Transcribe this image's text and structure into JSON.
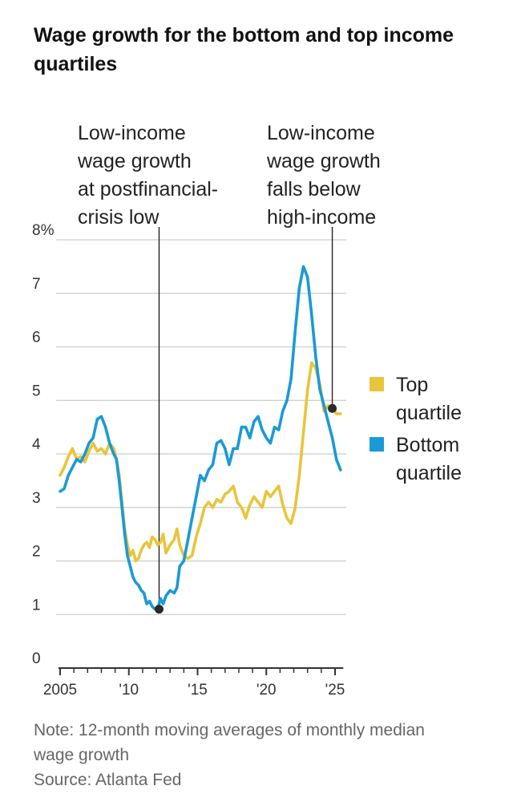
{
  "title": "Wage growth for the bottom and top income quartiles",
  "chart_data": {
    "type": "line",
    "title": "Wage growth for the bottom and top income quartiles",
    "xlabel": "",
    "ylabel": "",
    "xlim": [
      2005,
      2025.5
    ],
    "ylim": [
      0,
      8
    ],
    "y_ticks": [
      0,
      1,
      2,
      3,
      4,
      5,
      6,
      7,
      8
    ],
    "y_tick_labels": [
      "0",
      "1",
      "2",
      "3",
      "4",
      "5",
      "6",
      "7",
      "8%"
    ],
    "x_ticks": [
      2005,
      2010,
      2015,
      2020,
      2025
    ],
    "x_tick_labels": [
      "2005",
      "'10",
      "'15",
      "'20",
      "'25"
    ],
    "grid": true,
    "series": [
      {
        "name": "Top quartile",
        "color": "#e8c53a",
        "x": [
          2005.0,
          2005.3,
          2005.6,
          2005.9,
          2006.2,
          2006.5,
          2006.8,
          2007.1,
          2007.4,
          2007.7,
          2008.0,
          2008.3,
          2008.6,
          2008.9,
          2009.1,
          2009.3,
          2009.5,
          2009.7,
          2009.9,
          2010.1,
          2010.3,
          2010.5,
          2010.7,
          2010.9,
          2011.1,
          2011.3,
          2011.5,
          2011.7,
          2011.9,
          2012.1,
          2012.3,
          2012.5,
          2012.7,
          2013.0,
          2013.3,
          2013.5,
          2013.7,
          2014.0,
          2014.3,
          2014.6,
          2014.9,
          2015.2,
          2015.5,
          2015.8,
          2016.1,
          2016.4,
          2016.7,
          2017.0,
          2017.3,
          2017.6,
          2017.9,
          2018.2,
          2018.5,
          2018.8,
          2019.1,
          2019.4,
          2019.7,
          2020.0,
          2020.3,
          2020.6,
          2020.9,
          2021.2,
          2021.5,
          2021.8,
          2022.1,
          2022.4,
          2022.7,
          2023.0,
          2023.3,
          2023.6,
          2023.9,
          2024.2,
          2024.5,
          2024.8,
          2025.1,
          2025.4
        ],
        "values": [
          3.6,
          3.75,
          3.95,
          4.1,
          3.9,
          3.95,
          3.85,
          4.05,
          4.2,
          4.05,
          4.1,
          4.0,
          4.2,
          4.1,
          3.9,
          3.6,
          3.1,
          2.6,
          2.3,
          2.1,
          2.2,
          2.0,
          2.05,
          2.2,
          2.3,
          2.35,
          2.25,
          2.45,
          2.4,
          2.3,
          2.35,
          2.5,
          2.15,
          2.3,
          2.4,
          2.6,
          2.3,
          2.1,
          2.05,
          2.1,
          2.45,
          2.7,
          3.0,
          3.1,
          3.0,
          3.15,
          3.1,
          3.25,
          3.3,
          3.4,
          3.1,
          3.0,
          2.8,
          3.05,
          3.2,
          3.1,
          3.0,
          3.3,
          3.2,
          3.3,
          3.4,
          3.05,
          2.8,
          2.7,
          3.0,
          3.6,
          4.4,
          5.2,
          5.7,
          5.6,
          5.3,
          4.8,
          4.9,
          4.85,
          4.75,
          4.75
        ]
      },
      {
        "name": "Bottom quartile",
        "color": "#1a9ad6",
        "x": [
          2005.0,
          2005.3,
          2005.6,
          2005.9,
          2006.2,
          2006.5,
          2006.8,
          2007.1,
          2007.4,
          2007.7,
          2008.0,
          2008.3,
          2008.6,
          2008.9,
          2009.1,
          2009.3,
          2009.5,
          2009.7,
          2009.9,
          2010.1,
          2010.3,
          2010.5,
          2010.7,
          2010.9,
          2011.1,
          2011.3,
          2011.5,
          2011.7,
          2011.9,
          2012.1,
          2012.3,
          2012.5,
          2012.7,
          2013.0,
          2013.3,
          2013.5,
          2013.7,
          2014.0,
          2014.3,
          2014.6,
          2014.9,
          2015.2,
          2015.5,
          2015.8,
          2016.1,
          2016.4,
          2016.7,
          2017.0,
          2017.3,
          2017.6,
          2017.9,
          2018.2,
          2018.5,
          2018.8,
          2019.1,
          2019.4,
          2019.7,
          2020.0,
          2020.3,
          2020.6,
          2020.9,
          2021.2,
          2021.5,
          2021.8,
          2022.1,
          2022.4,
          2022.7,
          2023.0,
          2023.3,
          2023.6,
          2023.9,
          2024.2,
          2024.5,
          2024.8,
          2025.1,
          2025.4
        ],
        "values": [
          3.3,
          3.35,
          3.6,
          3.75,
          3.9,
          3.85,
          4.0,
          4.2,
          4.3,
          4.65,
          4.7,
          4.5,
          4.2,
          4.0,
          3.9,
          3.5,
          3.0,
          2.5,
          2.1,
          1.9,
          1.7,
          1.6,
          1.55,
          1.45,
          1.4,
          1.2,
          1.25,
          1.15,
          1.1,
          1.1,
          1.3,
          1.2,
          1.35,
          1.45,
          1.4,
          1.5,
          1.9,
          2.0,
          2.4,
          2.8,
          3.2,
          3.6,
          3.5,
          3.7,
          3.8,
          4.2,
          4.25,
          4.1,
          3.8,
          4.1,
          4.1,
          4.5,
          4.5,
          4.3,
          4.6,
          4.7,
          4.45,
          4.3,
          4.2,
          4.5,
          4.45,
          4.8,
          5.0,
          5.4,
          6.3,
          7.1,
          7.5,
          7.3,
          6.6,
          5.8,
          5.2,
          4.9,
          4.6,
          4.3,
          3.9,
          3.7
        ]
      }
    ],
    "legend": {
      "placement": "right",
      "entries": [
        {
          "label_line1": "Top",
          "label_line2": "quartile",
          "color": "#e8c53a"
        },
        {
          "label_line1": "Bottom",
          "label_line2": "quartile",
          "color": "#1a9ad6"
        }
      ]
    },
    "annotations": [
      {
        "lines": [
          "Low-income",
          "wage growth",
          "at postfinancial-",
          "crisis low"
        ],
        "x": 2012.2,
        "y": 1.1
      },
      {
        "lines": [
          "Low-income",
          "wage growth",
          "falls below",
          "high-income"
        ],
        "x": 2024.8,
        "y": 4.85
      }
    ]
  },
  "note": {
    "line1": "Note: 12-month moving averages of monthly median",
    "line2": "wage growth",
    "source": "Source: Atlanta Fed"
  },
  "colors": {
    "grid": "#cccccc",
    "axis": "#333333",
    "tick_label": "#333333",
    "annotation": "#222222",
    "marker": "#2a2a2a"
  }
}
